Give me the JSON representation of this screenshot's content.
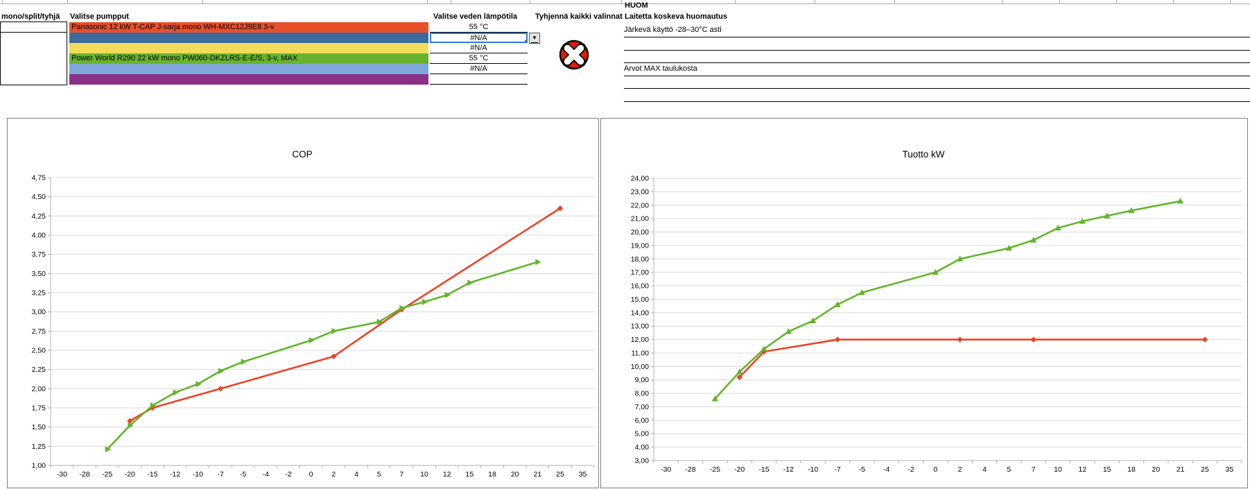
{
  "table": {
    "headers": {
      "col_mono": "mono/split/tyhjä",
      "col_pump": "Valitse pumpput",
      "col_temp": "Valitse veden lämpötila",
      "col_clear": "Tyhjennä kaikki valinnat",
      "huom_line1": "HUOM",
      "huom_line2": "Laitetta koskeva huomautus"
    },
    "rows": [
      {
        "pump": "Panasonic 12 kW T-CAP J-sarja mono WH-MXC12J9E8 3-v",
        "color": "#e8502a",
        "temp": "55 °C",
        "note": "Järkevä käyttö -28–30°C asti",
        "selected": false
      },
      {
        "pump": "",
        "color": "#3c6a9d",
        "temp": "#N/A",
        "note": "",
        "selected": true
      },
      {
        "pump": "",
        "color": "#f2dc5a",
        "temp": "#N/A",
        "note": "",
        "selected": false
      },
      {
        "pump": "Power World R290 22 kW mono PW060-DKZLRS-E-E/S, 3-v, MAX",
        "color": "#69b32d",
        "temp": "55 °C",
        "note": "Arvot MAX taulukosta",
        "selected": false
      },
      {
        "pump": "",
        "color": "#7fa7d9",
        "temp": "#N/A",
        "note": "",
        "selected": false
      },
      {
        "pump": "",
        "color": "#8c2f88",
        "temp": "",
        "note": "",
        "selected": false
      }
    ]
  },
  "icons": {
    "dropdown": "▼",
    "clear": "x-circle"
  },
  "colors": {
    "selection_blue": "#2a7ad2",
    "gridline": "#d9d9d9",
    "axis": "#b0b0b0",
    "clear_red": "#e11b0c"
  },
  "chart_data": [
    {
      "type": "line",
      "title": "COP",
      "categories": [
        "-30",
        "-28",
        "-25",
        "-20",
        "-15",
        "-12",
        "-10",
        "-7",
        "-5",
        "-4",
        "-2",
        "0",
        "2",
        "4",
        "5",
        "7",
        "10",
        "12",
        "15",
        "18",
        "20",
        "21",
        "25",
        "35"
      ],
      "xlabel": "",
      "ylabel": "",
      "ylim": [
        1.0,
        4.75
      ],
      "y_step": 0.25,
      "y_label_decimals": 2,
      "grid": "horizontal",
      "legend": "none",
      "series": [
        {
          "label": "Panasonic 12 kW T-CAP J-sarja mono WH-MXC12J9E8 3-v",
          "color": "#ea4426",
          "marker": "diamond",
          "points": [
            [
              -20,
              1.58
            ],
            [
              -15,
              1.75
            ],
            [
              -7,
              2.0
            ],
            [
              2,
              2.42
            ],
            [
              7,
              3.03
            ],
            [
              25,
              4.35
            ]
          ]
        },
        {
          "label": "Power World R290 22 kW mono PW060-DKZLRS-E-E/S, 3-v, MAX",
          "color": "#62b52b",
          "marker": "triangle-right",
          "points": [
            [
              -25,
              1.21
            ],
            [
              -20,
              1.52
            ],
            [
              -15,
              1.78
            ],
            [
              -12,
              1.95
            ],
            [
              -10,
              2.06
            ],
            [
              -7,
              2.23
            ],
            [
              -5,
              2.35
            ],
            [
              0,
              2.63
            ],
            [
              2,
              2.75
            ],
            [
              5,
              2.87
            ],
            [
              7,
              3.05
            ],
            [
              10,
              3.13
            ],
            [
              12,
              3.22
            ],
            [
              15,
              3.38
            ],
            [
              21,
              3.65
            ]
          ]
        }
      ]
    },
    {
      "type": "line",
      "title": "Tuotto kW",
      "categories": [
        "-30",
        "-28",
        "-25",
        "-20",
        "-15",
        "-12",
        "-10",
        "-7",
        "-5",
        "-4",
        "-2",
        "0",
        "2",
        "4",
        "5",
        "7",
        "10",
        "12",
        "15",
        "18",
        "20",
        "21",
        "25",
        "35"
      ],
      "xlabel": "",
      "ylabel": "",
      "ylim": [
        3.0,
        24.0
      ],
      "y_step": 1.0,
      "y_label_decimals": 2,
      "grid": "horizontal",
      "legend": "none",
      "series": [
        {
          "label": "Panasonic 12 kW T-CAP J-sarja mono WH-MXC12J9E8 3-v",
          "color": "#ea4426",
          "marker": "diamond",
          "points": [
            [
              -20,
              9.2
            ],
            [
              -15,
              11.1
            ],
            [
              -7,
              12.0
            ],
            [
              2,
              12.0
            ],
            [
              7,
              12.0
            ],
            [
              25,
              12.0
            ]
          ]
        },
        {
          "label": "Power World R290 22 kW mono PW060-DKZLRS-E-E/S, 3-v, MAX",
          "color": "#62b52b",
          "marker": "triangle-up",
          "points": [
            [
              -25,
              7.6
            ],
            [
              -20,
              9.6
            ],
            [
              -15,
              11.3
            ],
            [
              -12,
              12.6
            ],
            [
              -10,
              13.4
            ],
            [
              -7,
              14.6
            ],
            [
              -5,
              15.5
            ],
            [
              0,
              17.0
            ],
            [
              2,
              18.0
            ],
            [
              5,
              18.8
            ],
            [
              7,
              19.4
            ],
            [
              10,
              20.3
            ],
            [
              12,
              20.8
            ],
            [
              15,
              21.2
            ],
            [
              18,
              21.6
            ],
            [
              21,
              22.3
            ]
          ]
        }
      ]
    }
  ]
}
